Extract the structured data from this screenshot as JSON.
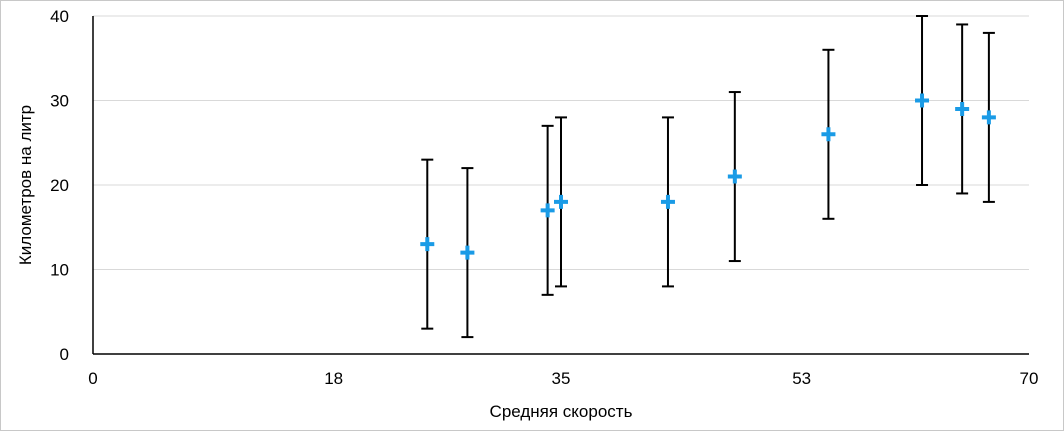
{
  "chart_data": {
    "type": "scatter",
    "title": "",
    "xlabel": "Средняя скорость",
    "ylabel": "Километров на литр",
    "xlim": [
      0,
      70
    ],
    "ylim": [
      0,
      40
    ],
    "x_ticks": [
      "0",
      "18",
      "35",
      "53",
      "70"
    ],
    "y_ticks": [
      "0",
      "10",
      "20",
      "30",
      "40"
    ],
    "grid": "horizontal",
    "marker": "plus",
    "colors": {
      "marker": "#1a9be6",
      "error_bar": "#000000",
      "grid": "#d9d9d9",
      "axis": "#000000"
    },
    "error_bar": "±10",
    "series": [
      {
        "points": [
          {
            "x": 25,
            "y": 13
          },
          {
            "x": 28,
            "y": 12
          },
          {
            "x": 34,
            "y": 17
          },
          {
            "x": 35,
            "y": 18
          },
          {
            "x": 43,
            "y": 18
          },
          {
            "x": 48,
            "y": 21
          },
          {
            "x": 55,
            "y": 26
          },
          {
            "x": 62,
            "y": 30
          },
          {
            "x": 65,
            "y": 29
          },
          {
            "x": 67,
            "y": 28
          }
        ],
        "error": 10
      }
    ]
  }
}
